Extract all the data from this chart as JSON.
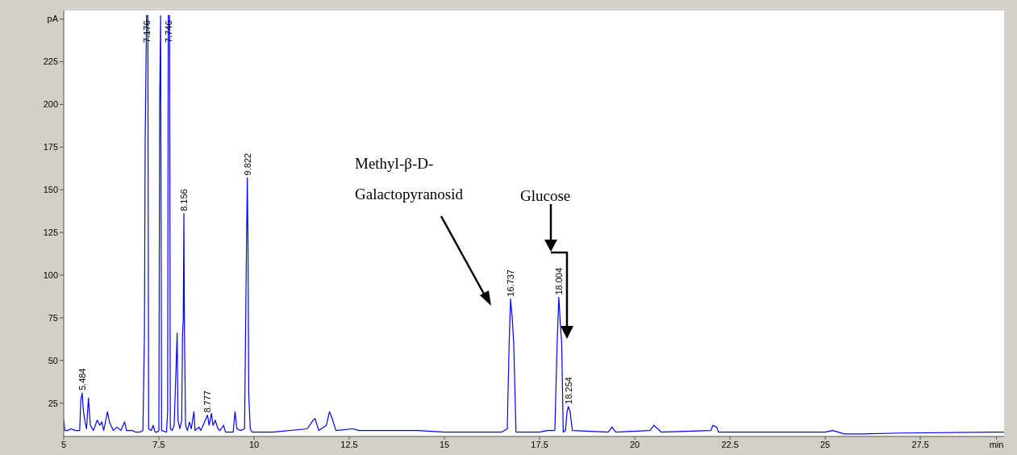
{
  "chart_data": {
    "type": "line",
    "xlim": [
      5,
      29.7
    ],
    "ylim": [
      5.5,
      255
    ],
    "xticks": [
      5,
      7.5,
      10,
      12.5,
      15,
      17.5,
      20,
      22.5,
      25,
      27.5,
      {
        "value": 29.5,
        "label": "min"
      }
    ],
    "yticks": [
      25,
      50,
      75,
      100,
      125,
      150,
      175,
      200,
      225,
      {
        "value": 250,
        "label": "pA"
      }
    ],
    "series": [
      {
        "color": "#0000ff",
        "x": [
          5.0,
          5.03,
          5.1,
          5.2,
          5.3,
          5.42,
          5.45,
          5.484,
          5.52,
          5.56,
          5.6,
          5.65,
          5.7,
          5.78,
          5.88,
          5.95,
          6.0,
          6.05,
          6.15,
          6.2,
          6.3,
          6.4,
          6.5,
          6.6,
          6.65,
          6.8,
          6.9,
          7.0,
          7.08,
          7.12,
          7.14,
          7.176,
          7.21,
          7.23,
          7.3,
          7.35,
          7.4,
          7.45,
          7.5,
          7.52,
          7.546,
          7.57,
          7.7,
          7.73,
          7.746,
          7.78,
          7.8,
          7.85,
          7.9,
          7.95,
          7.98,
          8.0,
          8.05,
          8.1,
          8.12,
          8.14,
          8.156,
          8.17,
          8.2,
          8.25,
          8.3,
          8.35,
          8.42,
          8.45,
          8.55,
          8.6,
          8.7,
          8.777,
          8.82,
          8.88,
          8.92,
          8.98,
          9.05,
          9.1,
          9.2,
          9.25,
          9.45,
          9.5,
          9.55,
          9.65,
          9.75,
          9.79,
          9.822,
          9.84,
          9.86,
          9.9,
          9.95,
          10.5,
          11.4,
          11.55,
          11.6,
          11.7,
          11.9,
          11.98,
          12.05,
          12.15,
          12.6,
          12.75,
          14.3,
          15.0,
          16.5,
          16.65,
          16.7,
          16.737,
          16.78,
          16.82,
          16.88,
          17.5,
          17.7,
          17.9,
          17.96,
          18.004,
          18.04,
          18.08,
          18.12,
          18.18,
          18.22,
          18.254,
          18.3,
          18.36,
          19.3,
          19.4,
          19.5,
          20.4,
          20.5,
          20.6,
          20.7,
          22.0,
          22.05,
          22.15,
          22.2,
          25.0,
          25.2,
          25.5,
          26.0,
          27.0,
          29.5,
          29.7
        ],
        "values": [
          15,
          9,
          9,
          10,
          9,
          9,
          27,
          31,
          20,
          14,
          10,
          28,
          12,
          9,
          15,
          12,
          14,
          9,
          20,
          14,
          9,
          11,
          9,
          14,
          9,
          9,
          8,
          8,
          9,
          65,
          180,
          252,
          252,
          10,
          9,
          12,
          8,
          8,
          9,
          200,
          252,
          9,
          8,
          20,
          252,
          252,
          10,
          9,
          12,
          45,
          66,
          15,
          10,
          15,
          65,
          74,
          136,
          70,
          12,
          9,
          14,
          10,
          20,
          9,
          11,
          9,
          14,
          18,
          12,
          19,
          12,
          15,
          10,
          9,
          12,
          8,
          8,
          20,
          10,
          9,
          10,
          95,
          157,
          120,
          30,
          10,
          8,
          8,
          10,
          15,
          16,
          9,
          12,
          20,
          16,
          9,
          10,
          9,
          9,
          8,
          8,
          10,
          60,
          86,
          75,
          60,
          8,
          8,
          9,
          9,
          60,
          87,
          73,
          60,
          8,
          9,
          20,
          23,
          20,
          9,
          8,
          11,
          8,
          9,
          12,
          10,
          8,
          9,
          12,
          11,
          8,
          8,
          9,
          7,
          7,
          7.5,
          8,
          8
        ]
      }
    ],
    "annotations": [
      {
        "text": "5.484",
        "x": 5.484,
        "y": 31
      },
      {
        "text": "7.176",
        "x": 7.176,
        "y": 252
      },
      {
        "text": "7.746",
        "x": 7.746,
        "y": 252
      },
      {
        "text": "8.156",
        "x": 8.156,
        "y": 136
      },
      {
        "text": "8.777",
        "x": 8.777,
        "y": 18
      },
      {
        "text": "9.822",
        "x": 9.822,
        "y": 157
      },
      {
        "text": "16.737",
        "x": 16.737,
        "y": 86
      },
      {
        "text": "18.004",
        "x": 18.004,
        "y": 87
      },
      {
        "text": "18.254",
        "x": 18.254,
        "y": 23
      },
      "Methyl-β-D-\nGalactopyranosid",
      "Glucose"
    ]
  }
}
